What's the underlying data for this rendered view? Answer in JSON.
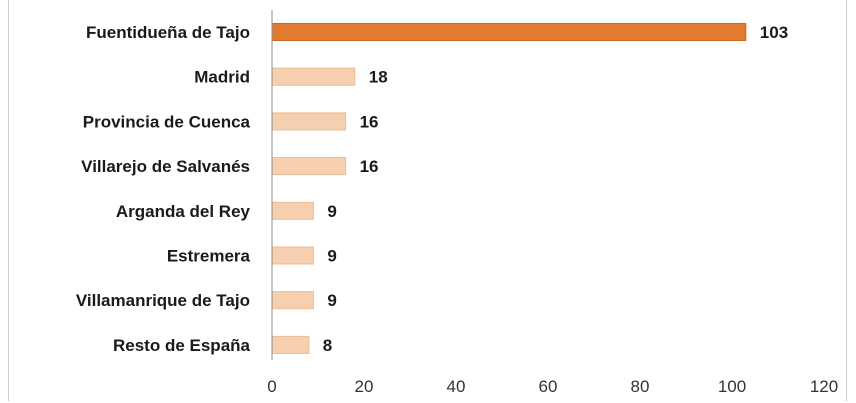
{
  "chart_data": {
    "type": "bar",
    "orientation": "horizontal",
    "categories": [
      "Fuentidueña de Tajo",
      "Madrid",
      "Provincia de Cuenca",
      "Villarejo de Salvanés",
      "Arganda del Rey",
      "Estremera",
      "Villamanrique de Tajo",
      "Resto de España"
    ],
    "values": [
      103,
      18,
      16,
      16,
      9,
      9,
      9,
      8
    ],
    "value_labels": [
      "103",
      "18",
      "16",
      "16",
      "9",
      "9",
      "9",
      "8"
    ],
    "xlim": [
      0,
      120
    ],
    "xticks": [
      0,
      20,
      40,
      60,
      80,
      100,
      120
    ],
    "xtick_labels": [
      "0",
      "20",
      "40",
      "60",
      "80",
      "100",
      "120"
    ],
    "grid": false,
    "legend": "none",
    "colors": {
      "highlight": "#e07b30",
      "highlight_border": "#c86a24",
      "bar": "#f5cfae",
      "bar_border": "#ecbc95",
      "axis": "#8c8c8c"
    },
    "highlight_index": 0
  }
}
